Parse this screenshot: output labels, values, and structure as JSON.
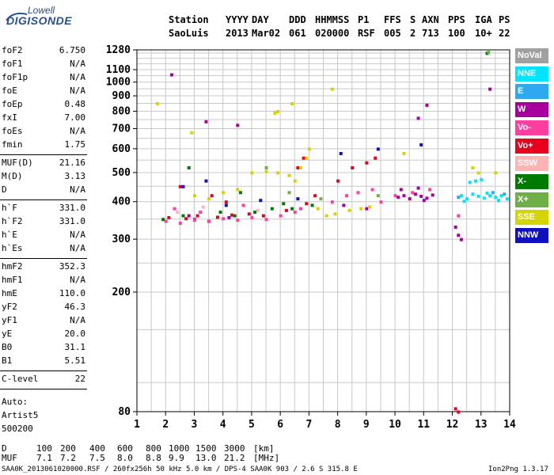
{
  "logo": {
    "line1": "Lowell",
    "line2": "DIGISONDE"
  },
  "header": {
    "columns": [
      {
        "top": "Station",
        "bottom": "SaoLuis"
      },
      {
        "top": "YYYY",
        "bottom": "2013"
      },
      {
        "top": "DAY",
        "bottom": "Mar02"
      },
      {
        "top": "DDD",
        "bottom": "061"
      },
      {
        "top": "HHMMSS",
        "bottom": "020000"
      },
      {
        "top": "P1",
        "bottom": "RSF"
      },
      {
        "top": "FFS",
        "bottom": "005"
      },
      {
        "top": "S",
        "bottom": "2"
      },
      {
        "top": "AXN",
        "bottom": "713"
      },
      {
        "top": "PPS",
        "bottom": "100"
      },
      {
        "top": "IGA",
        "bottom": "10+"
      },
      {
        "top": "PS",
        "bottom": "22"
      }
    ]
  },
  "params": [
    [
      {
        "n": "foF2",
        "v": "6.750"
      },
      {
        "n": "foF1",
        "v": "N/A"
      },
      {
        "n": "foF1p",
        "v": "N/A"
      },
      {
        "n": "foE",
        "v": "N/A"
      },
      {
        "n": "foEp",
        "v": "0.48"
      },
      {
        "n": "fxI",
        "v": "7.00"
      },
      {
        "n": "foEs",
        "v": "N/A"
      },
      {
        "n": "fmin",
        "v": "1.75"
      }
    ],
    [
      {
        "n": "MUF(D)",
        "v": "21.16"
      },
      {
        "n": "M(D)",
        "v": "3.13"
      },
      {
        "n": "D",
        "v": "N/A"
      }
    ],
    [
      {
        "n": "h`F",
        "v": "331.0"
      },
      {
        "n": "h`F2",
        "v": "331.0"
      },
      {
        "n": "h`E",
        "v": "N/A"
      },
      {
        "n": "h`Es",
        "v": "N/A"
      }
    ],
    [
      {
        "n": "hmF2",
        "v": "352.3"
      },
      {
        "n": "hmF1",
        "v": "N/A"
      },
      {
        "n": "hmE",
        "v": "110.0"
      },
      {
        "n": "yF2",
        "v": "46.3"
      },
      {
        "n": "yF1",
        "v": "N/A"
      },
      {
        "n": "yE",
        "v": "20.0"
      },
      {
        "n": "B0",
        "v": "31.1"
      },
      {
        "n": "B1",
        "v": "5.51"
      }
    ],
    [
      {
        "n": "C-level",
        "v": "22"
      }
    ]
  ],
  "auto": {
    "label": "Auto:",
    "software": "Artist5",
    "version": "500200"
  },
  "legend": [
    {
      "label": "NoVal",
      "color": "#a0a0a0"
    },
    {
      "label": "NNE",
      "color": "#00e5ff"
    },
    {
      "label": "E",
      "color": "#2ea9ef"
    },
    {
      "label": "W",
      "color": "#a8009c"
    },
    {
      "label": "Vo-",
      "color": "#ff3fa0"
    },
    {
      "label": "Vo+",
      "color": "#e8001c"
    },
    {
      "label": "SSW",
      "color": "#ffb3b3"
    },
    {
      "label": "X-",
      "color": "#007a00"
    },
    {
      "label": "X+",
      "color": "#6fb046"
    },
    {
      "label": "SSE",
      "color": "#d4d400"
    },
    {
      "label": "NNW",
      "color": "#1010c0"
    }
  ],
  "muf_table": {
    "d_label": "D",
    "d_values": [
      "100",
      "200",
      "400",
      "600",
      "800",
      "1000",
      "1500",
      "3000"
    ],
    "d_unit": "[km]",
    "muf_label": "MUF",
    "muf_values": [
      "7.1",
      "7.2",
      "7.5",
      "8.0",
      "8.8",
      "9.9",
      "13.0",
      "21.2"
    ],
    "muf_unit": "[MHz]"
  },
  "footer": {
    "left": "SAA0K_2013061020000.RSF / 260fx256h 50 kHz 5.0 km / DPS-4 SAA0K 903 / 2.6 S 315.8 E",
    "right": "Ion2Png 1.3.17"
  },
  "chart_data": {
    "type": "scatter",
    "title": "",
    "xlabel": "",
    "ylabel": "",
    "xlim": [
      1,
      14
    ],
    "ylim": [
      80,
      1280
    ],
    "y_scale": "log",
    "x_ticks": [
      1,
      2,
      3,
      4,
      5,
      6,
      7,
      8,
      9,
      10,
      11,
      12,
      13,
      14
    ],
    "y_ticks": [
      80,
      200,
      300,
      400,
      500,
      600,
      700,
      800,
      900,
      1000,
      1100,
      1280
    ],
    "grid": true,
    "legend_placement": "right",
    "series": [
      {
        "name": "NNE",
        "color": "#00e5ff",
        "points": [
          [
            12.3,
            420
          ],
          [
            12.5,
            410
          ],
          [
            12.7,
            425
          ],
          [
            12.9,
            418
          ],
          [
            13.1,
            412
          ],
          [
            13.3,
            420
          ],
          [
            13.5,
            415
          ],
          [
            13.7,
            420
          ],
          [
            13.9,
            410
          ],
          [
            12.8,
            470
          ],
          [
            13.0,
            475
          ],
          [
            12.6,
            465
          ],
          [
            13.2,
            428
          ],
          [
            13.6,
            405
          ],
          [
            12.4,
            402
          ]
        ]
      },
      {
        "name": "E",
        "color": "#2ea9ef",
        "points": [
          [
            13.4,
            430
          ],
          [
            12.2,
            415
          ],
          [
            13.8,
            425
          ]
        ]
      },
      {
        "name": "W",
        "color": "#a8009c",
        "points": [
          [
            10.1,
            415
          ],
          [
            10.3,
            420
          ],
          [
            10.5,
            410
          ],
          [
            10.7,
            425
          ],
          [
            10.9,
            418
          ],
          [
            11.1,
            412
          ],
          [
            11.3,
            422
          ],
          [
            10.2,
            440
          ],
          [
            10.8,
            445
          ],
          [
            11.0,
            405
          ],
          [
            3.0,
            350
          ],
          [
            3.5,
            345
          ],
          [
            4.2,
            355
          ],
          [
            2.8,
            360
          ],
          [
            9.0,
            380
          ],
          [
            8.2,
            390
          ],
          [
            3.4,
            740
          ],
          [
            4.5,
            720
          ],
          [
            2.2,
            1060
          ],
          [
            12.1,
            330
          ],
          [
            12.2,
            310
          ],
          [
            12.3,
            300
          ],
          [
            13.3,
            950
          ],
          [
            11.1,
            840
          ],
          [
            10.8,
            760
          ]
        ]
      },
      {
        "name": "Vo-",
        "color": "#ff3fa0",
        "points": [
          [
            2.0,
            345
          ],
          [
            2.5,
            340
          ],
          [
            3.0,
            348
          ],
          [
            3.5,
            345
          ],
          [
            4.0,
            352
          ],
          [
            4.5,
            348
          ],
          [
            5.0,
            355
          ],
          [
            5.5,
            350
          ],
          [
            6.0,
            360
          ],
          [
            6.5,
            370
          ],
          [
            6.7,
            380
          ],
          [
            7.8,
            400
          ],
          [
            8.3,
            420
          ],
          [
            8.7,
            430
          ],
          [
            9.2,
            440
          ],
          [
            9.5,
            400
          ],
          [
            10.0,
            420
          ],
          [
            10.6,
            430
          ],
          [
            11.2,
            440
          ],
          [
            2.3,
            380
          ],
          [
            3.2,
            370
          ],
          [
            4.7,
            390
          ],
          [
            12.2,
            360
          ]
        ]
      },
      {
        "name": "Vo+",
        "color": "#e8001c",
        "points": [
          [
            2.1,
            355
          ],
          [
            2.7,
            352
          ],
          [
            3.1,
            360
          ],
          [
            3.8,
            356
          ],
          [
            4.3,
            362
          ],
          [
            4.9,
            365
          ],
          [
            5.4,
            360
          ],
          [
            6.2,
            375
          ],
          [
            6.9,
            395
          ],
          [
            7.2,
            420
          ],
          [
            8.0,
            470
          ],
          [
            8.5,
            520
          ],
          [
            9.0,
            540
          ],
          [
            9.3,
            560
          ],
          [
            2.5,
            450
          ],
          [
            3.6,
            420
          ],
          [
            4.1,
            400
          ],
          [
            12.1,
            82
          ],
          [
            12.2,
            80
          ],
          [
            6.6,
            520
          ],
          [
            6.8,
            560
          ]
        ]
      },
      {
        "name": "SSW",
        "color": "#ffb3b3",
        "points": [
          [
            2.4,
            370
          ],
          [
            3.3,
            385
          ],
          [
            5.2,
            375
          ]
        ]
      },
      {
        "name": "X-",
        "color": "#007a00",
        "points": [
          [
            1.9,
            350
          ],
          [
            2.6,
            360
          ],
          [
            3.9,
            370
          ],
          [
            4.4,
            360
          ],
          [
            5.1,
            370
          ],
          [
            5.7,
            380
          ],
          [
            6.1,
            395
          ],
          [
            6.4,
            380
          ],
          [
            7.1,
            390
          ],
          [
            13.2,
            1250
          ],
          [
            2.8,
            520
          ],
          [
            4.6,
            430
          ]
        ]
      },
      {
        "name": "X+",
        "color": "#6fb046",
        "points": [
          [
            13.25,
            1260
          ],
          [
            5.5,
            520
          ],
          [
            6.3,
            430
          ],
          [
            7.4,
            410
          ],
          [
            9.4,
            420
          ]
        ]
      },
      {
        "name": "SSE",
        "color": "#d4d400",
        "points": [
          [
            3.0,
            420
          ],
          [
            3.5,
            410
          ],
          [
            4.0,
            430
          ],
          [
            4.5,
            440
          ],
          [
            5.0,
            500
          ],
          [
            5.5,
            505
          ],
          [
            5.9,
            500
          ],
          [
            6.3,
            490
          ],
          [
            6.5,
            470
          ],
          [
            6.7,
            520
          ],
          [
            6.9,
            560
          ],
          [
            7.0,
            600
          ],
          [
            7.3,
            380
          ],
          [
            7.6,
            360
          ],
          [
            7.9,
            365
          ],
          [
            8.4,
            375
          ],
          [
            8.8,
            380
          ],
          [
            9.1,
            385
          ],
          [
            5.8,
            790
          ],
          [
            5.9,
            800
          ],
          [
            6.4,
            850
          ],
          [
            1.7,
            850
          ],
          [
            2.9,
            680
          ],
          [
            7.8,
            950
          ],
          [
            10.3,
            580
          ],
          [
            12.9,
            500
          ],
          [
            13.5,
            500
          ],
          [
            12.7,
            520
          ]
        ]
      },
      {
        "name": "NNW",
        "color": "#1010c0",
        "points": [
          [
            2.6,
            450
          ],
          [
            3.4,
            470
          ],
          [
            4.1,
            390
          ],
          [
            5.3,
            405
          ],
          [
            6.6,
            410
          ],
          [
            8.1,
            580
          ],
          [
            9.4,
            600
          ],
          [
            10.9,
            620
          ]
        ]
      }
    ]
  }
}
